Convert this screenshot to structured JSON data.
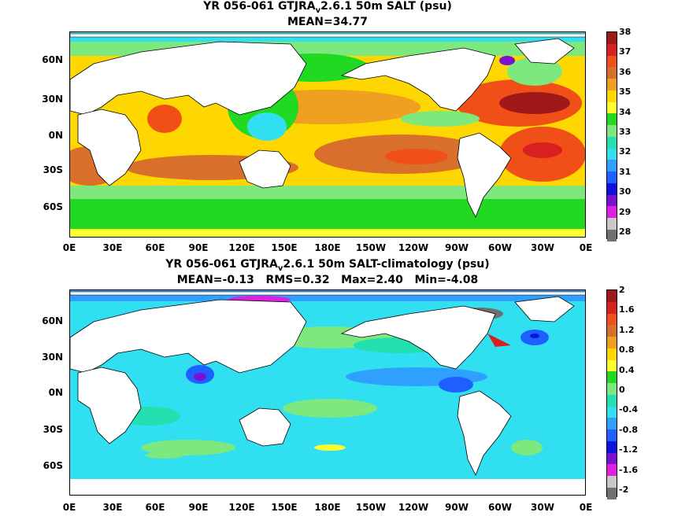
{
  "panels": [
    {
      "title_prefix": "YR 056-061 GTJRA",
      "title_sub": "v",
      "title_suffix": "2.6.1 50m SALT (psu)",
      "stats": "MEAN=34.77",
      "colorbar_labels": [
        "38",
        "37",
        "36",
        "35",
        "34",
        "33",
        "32",
        "31",
        "30",
        "29",
        "28"
      ],
      "colorbar_colors": [
        "#a01818",
        "#d82020",
        "#f05018",
        "#d86f2a",
        "#f0a020",
        "#ffd700",
        "#ffff30",
        "#22d922",
        "#7de87d",
        "#22e0b0",
        "#30e0f0",
        "#30a0ff",
        "#1e60ff",
        "#1010e0",
        "#7a10d0",
        "#e020e0",
        "#c8c8c8",
        "#707070"
      ]
    },
    {
      "title_prefix": "YR 056-061 GTJRA",
      "title_sub": "v",
      "title_suffix": "2.6.1 50m SALT-climatology (psu)",
      "stats": "MEAN=-0.13   RMS=0.32   Max=2.40   Min=-4.08",
      "colorbar_labels": [
        "2",
        "1.6",
        "1.2",
        "0.8",
        "0.4",
        "0",
        "-0.4",
        "-0.8",
        "-1.2",
        "-1.6",
        "-2"
      ],
      "colorbar_colors": [
        "#a01818",
        "#d82020",
        "#f05018",
        "#d86f2a",
        "#f0a020",
        "#ffd700",
        "#ffff30",
        "#22d922",
        "#7de87d",
        "#22e0b0",
        "#30e0f0",
        "#30a0ff",
        "#1e60ff",
        "#1010e0",
        "#7a10d0",
        "#e020e0",
        "#c8c8c8",
        "#707070"
      ]
    }
  ],
  "lat_labels": [
    "60N",
    "30N",
    "0N",
    "30S",
    "60S"
  ],
  "lon_labels": [
    "0E",
    "30E",
    "60E",
    "90E",
    "120E",
    "150E",
    "180E",
    "150W",
    "120W",
    "90W",
    "60W",
    "30W",
    "0E"
  ]
}
